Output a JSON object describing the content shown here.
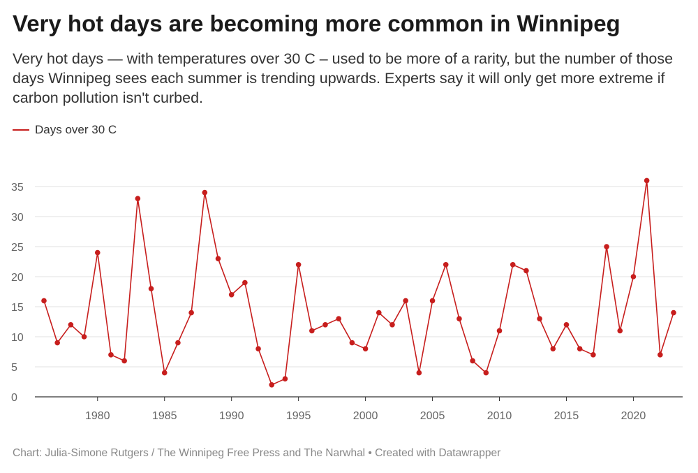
{
  "title": "Very hot days are becoming more common in Winnipeg",
  "subtitle": "Very hot days — with temperatures over 30 C – used to be more of a rarity, but the number of those days Winnipeg sees each summer is trending upwards. Experts say it will only get more extreme if carbon pollution isn't curbed.",
  "footer": "Chart: Julia-Simone Rutgers / The Winnipeg Free Press and The Narwhal • Created with Datawrapper",
  "colors": {
    "line": "#c71e1d",
    "grid": "#e0e0e0",
    "axis": "#333333"
  },
  "chart_data": {
    "type": "line",
    "title": "Very hot days are becoming more common in Winnipeg",
    "xlabel": "",
    "ylabel": "",
    "legend_position": "top-left",
    "xlim": [
      1976,
      2023
    ],
    "ylim": [
      0,
      35
    ],
    "x_ticks": [
      1980,
      1985,
      1990,
      1995,
      2000,
      2005,
      2010,
      2015,
      2020
    ],
    "y_ticks": [
      0,
      5,
      10,
      15,
      20,
      25,
      30,
      35
    ],
    "grid": true,
    "x": [
      1976,
      1977,
      1978,
      1979,
      1980,
      1981,
      1982,
      1983,
      1984,
      1985,
      1986,
      1987,
      1988,
      1989,
      1990,
      1991,
      1992,
      1993,
      1994,
      1995,
      1996,
      1997,
      1998,
      1999,
      2000,
      2001,
      2002,
      2003,
      2004,
      2005,
      2006,
      2007,
      2008,
      2009,
      2010,
      2011,
      2012,
      2013,
      2014,
      2015,
      2016,
      2017,
      2018,
      2019,
      2020,
      2021,
      2022,
      2023
    ],
    "series": [
      {
        "name": "Days over 30 C",
        "values": [
          16,
          9,
          12,
          10,
          24,
          7,
          6,
          33,
          18,
          4,
          9,
          14,
          34,
          23,
          17,
          19,
          8,
          2,
          3,
          22,
          11,
          12,
          13,
          9,
          8,
          14,
          12,
          16,
          4,
          16,
          22,
          13,
          6,
          4,
          11,
          22,
          21,
          13,
          8,
          12,
          8,
          7,
          25,
          11,
          20,
          36,
          7,
          14
        ]
      }
    ]
  }
}
